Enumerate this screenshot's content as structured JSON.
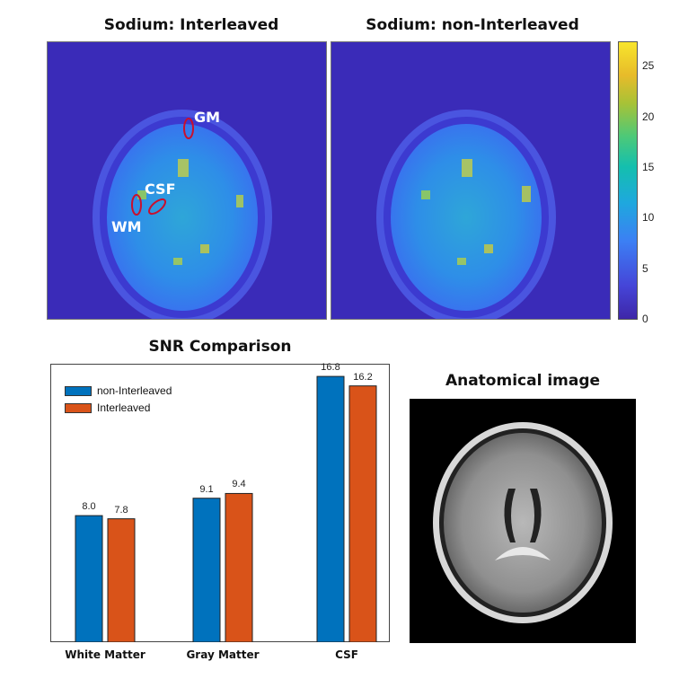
{
  "maps": {
    "left_title": "Sodium: Interleaved",
    "right_title": "Sodium: non-Interleaved",
    "roi_labels": [
      "GM",
      "CSF",
      "WM"
    ],
    "colorbar_ticks": [
      "25",
      "20",
      "15",
      "10",
      "5",
      "0"
    ],
    "colorbar_range": [
      0,
      27.5
    ]
  },
  "anatomical": {
    "title": "Anatomical image"
  },
  "colors": {
    "non_interleaved": "#0072bd",
    "interleaved": "#d95319",
    "roi_outline": "#c8102e"
  },
  "chart_data": {
    "type": "bar",
    "title": "SNR Comparison",
    "categories": [
      "White Matter",
      "Gray Matter",
      "CSF"
    ],
    "series": [
      {
        "name": "non-Interleaved",
        "values": [
          8.0,
          9.1,
          16.8
        ],
        "labels": [
          "8.0",
          "9.1",
          "16.8"
        ]
      },
      {
        "name": "Interleaved",
        "values": [
          7.8,
          9.4,
          16.2
        ],
        "labels": [
          "7.8",
          "9.4",
          "16.2"
        ]
      }
    ],
    "ylim": [
      0,
      17.6
    ],
    "legend": "top-left",
    "grid": false
  }
}
